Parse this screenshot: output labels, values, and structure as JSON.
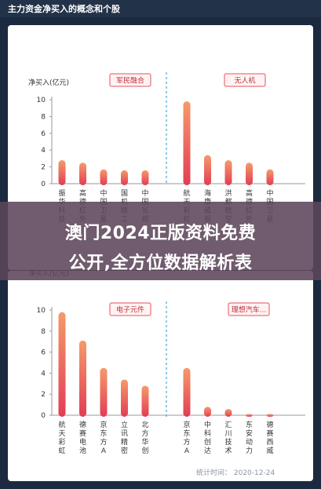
{
  "page_title": "主力资金净买入的概念和个股",
  "banner_line1": "澳门2024正版资料免费",
  "banner_line2": "公开,全方位数据解析表",
  "footer_text": "统计时间： 2020-12-24",
  "colors": {
    "bar_top": "#f59a6b",
    "bar_bottom": "#e23d54",
    "tag_border": "#e8505b",
    "divider": "#4aa3d8"
  },
  "chart_data": [
    {
      "type": "bar",
      "ylabel": "净买入(亿元)",
      "ylim": [
        0,
        10
      ],
      "yticks": [
        0,
        2,
        4,
        6,
        8,
        10
      ],
      "groups": [
        {
          "tag": "军民融合",
          "categories": [
            "振华科技",
            "高德红外",
            "中国卫星",
            "国机精工",
            "中国长城"
          ],
          "values": [
            2.8,
            2.5,
            1.7,
            1.6,
            1.6
          ]
        },
        {
          "tag": "无人机",
          "categories": [
            "航天彩虹",
            "海康威视",
            "洪都航空",
            "高德红外",
            "中国卫星"
          ],
          "values": [
            9.8,
            3.4,
            2.8,
            2.5,
            1.7
          ]
        }
      ]
    },
    {
      "type": "bar",
      "ylabel": "净买入(亿元)",
      "ylim": [
        0,
        10
      ],
      "yticks": [
        0,
        2,
        4,
        6,
        8,
        10
      ],
      "groups": [
        {
          "tag": "电子元件",
          "categories": [
            "航天彩虹",
            "德赛电池",
            "京东方A",
            "立讯精密",
            "北方华创"
          ],
          "values": [
            9.8,
            7.1,
            4.5,
            3.4,
            2.8
          ]
        },
        {
          "tag": "理想汽车...",
          "categories": [
            "京东方A",
            "中科创达",
            "汇川技术",
            "东安动力",
            "德赛西威"
          ],
          "values": [
            4.5,
            0.8,
            0.6,
            0.1,
            0.1
          ]
        }
      ]
    }
  ]
}
